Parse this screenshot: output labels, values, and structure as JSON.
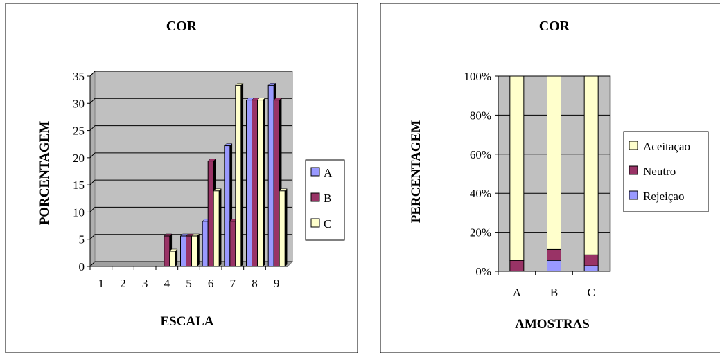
{
  "chart_data": [
    {
      "type": "bar",
      "title": "COR",
      "xlabel": "ESCALA",
      "ylabel": "PORCENTAGEM",
      "categories": [
        "1",
        "2",
        "3",
        "4",
        "5",
        "6",
        "7",
        "8",
        "9"
      ],
      "y_ticks": [
        "0",
        "5",
        "10",
        "15",
        "20",
        "25",
        "30",
        "35"
      ],
      "ylim": [
        0,
        35
      ],
      "grid": true,
      "legend_position": "right",
      "series": [
        {
          "name": "A",
          "color": "#9999ff",
          "values": [
            0,
            0,
            0,
            0,
            5.6,
            8.3,
            22.2,
            30.6,
            33.3
          ]
        },
        {
          "name": "B",
          "color": "#993366",
          "values": [
            0,
            0,
            0,
            5.6,
            5.6,
            19.4,
            8.3,
            30.6,
            30.6
          ]
        },
        {
          "name": "C",
          "color": "#ffffcc",
          "values": [
            0,
            0,
            0,
            2.8,
            5.6,
            13.9,
            33.3,
            30.6,
            13.9
          ]
        }
      ]
    },
    {
      "type": "stacked-bar-100",
      "title": "COR",
      "xlabel": "AMOSTRAS",
      "ylabel": "PERCENTAGEM",
      "categories": [
        "A",
        "B",
        "C"
      ],
      "y_ticks": [
        "0%",
        "20%",
        "40%",
        "60%",
        "80%",
        "100%"
      ],
      "ylim": [
        0,
        100
      ],
      "grid": true,
      "legend_position": "right",
      "series": [
        {
          "name": "Rejeiçao",
          "color": "#9999ff",
          "values": [
            0,
            5.6,
            2.8
          ]
        },
        {
          "name": "Neutro",
          "color": "#993366",
          "values": [
            5.6,
            5.6,
            5.6
          ]
        },
        {
          "name": "Aceitaçao",
          "color": "#ffffcc",
          "values": [
            94.4,
            88.8,
            91.6
          ]
        }
      ],
      "legend_order": [
        "Aceitaçao",
        "Neutro",
        "Rejeiçao"
      ]
    }
  ]
}
